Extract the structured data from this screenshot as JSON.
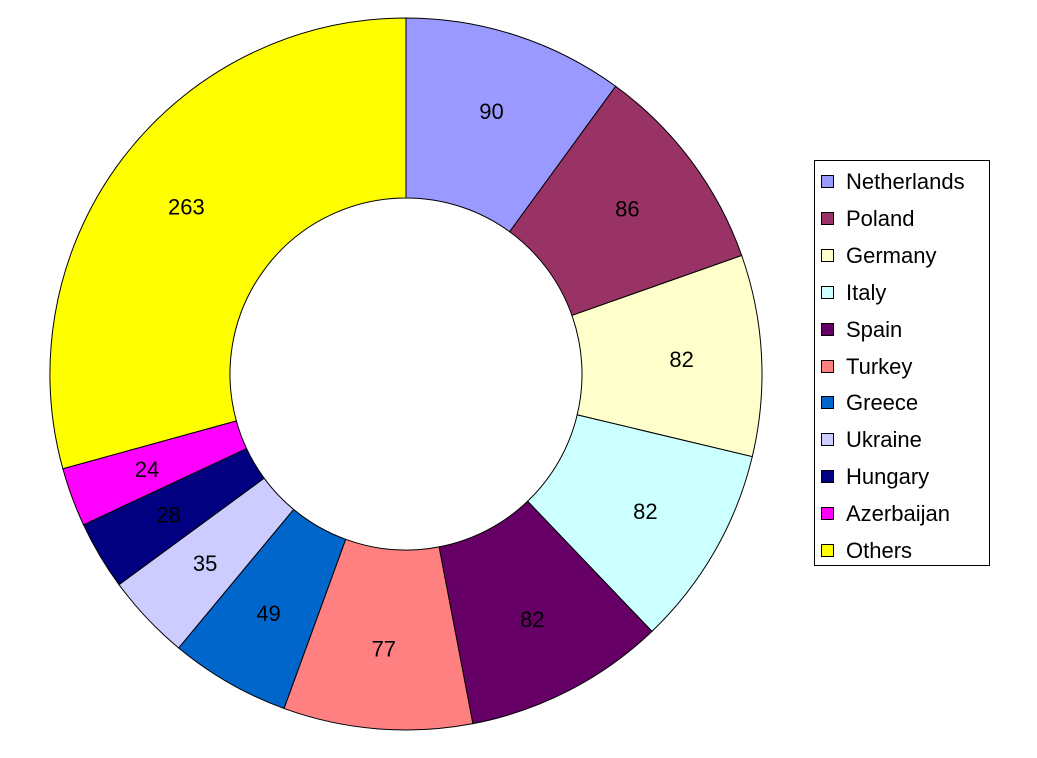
{
  "chart_data": {
    "type": "pie",
    "variant": "doughnut",
    "legend_position": "right",
    "series": [
      {
        "name": "Netherlands",
        "value": 90,
        "color": "#9999FF"
      },
      {
        "name": "Poland",
        "value": 86,
        "color": "#993366"
      },
      {
        "name": "Germany",
        "value": 82,
        "color": "#FFFFCC"
      },
      {
        "name": "Italy",
        "value": 82,
        "color": "#CCFFFF"
      },
      {
        "name": "Spain",
        "value": 82,
        "color": "#660066"
      },
      {
        "name": "Turkey",
        "value": 77,
        "color": "#FF8080"
      },
      {
        "name": "Greece",
        "value": 49,
        "color": "#0066CC"
      },
      {
        "name": "Ukraine",
        "value": 35,
        "color": "#CCCCFF"
      },
      {
        "name": "Hungary",
        "value": 28,
        "color": "#000080"
      },
      {
        "name": "Azerbaijan",
        "value": 24,
        "color": "#FF00FF"
      },
      {
        "name": "Others",
        "value": 263,
        "color": "#FFFF00"
      }
    ]
  }
}
